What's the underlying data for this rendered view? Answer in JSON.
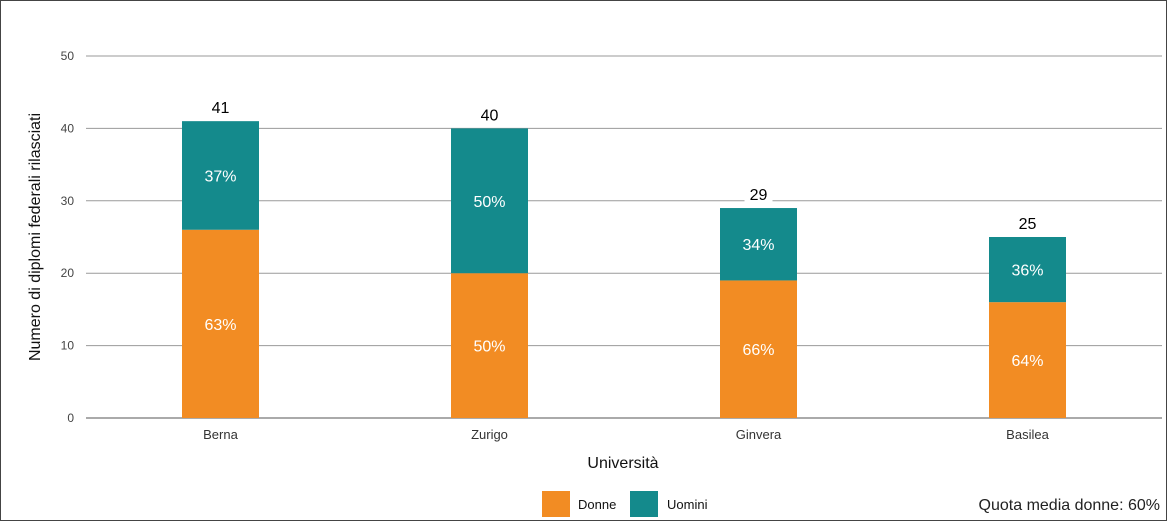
{
  "chart_data": {
    "type": "bar",
    "stacked": true,
    "categories": [
      "Berna",
      "Zurigo",
      "Ginvera",
      "Basilea"
    ],
    "series": [
      {
        "name": "Donne",
        "values": [
          26,
          20,
          19,
          16
        ],
        "labels": [
          "63%",
          "50%",
          "66%",
          "64%"
        ],
        "color": "#f28c23"
      },
      {
        "name": "Uomini",
        "values": [
          15,
          20,
          10,
          9
        ],
        "labels": [
          "37%",
          "50%",
          "34%",
          "36%"
        ],
        "color": "#148a8c"
      }
    ],
    "totals": [
      "41",
      "40",
      "29",
      "25"
    ],
    "xlabel": "Università",
    "ylabel": "Numero di diplomi federali rilasciati",
    "ylim": [
      0,
      50
    ],
    "yticks": [
      0,
      10,
      20,
      30,
      40,
      50
    ],
    "grid": true,
    "legend_position": "bottom",
    "annotation": "Quota media donne: 60%"
  }
}
